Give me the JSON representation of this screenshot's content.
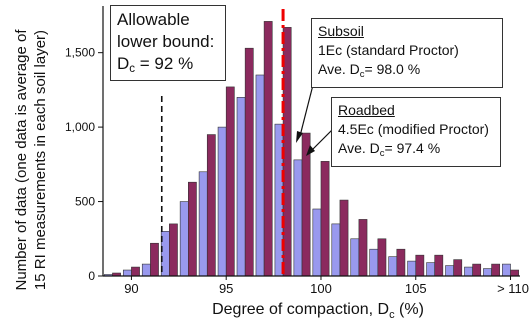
{
  "chart_data": {
    "type": "bar",
    "xlabel_main": "Degree of compaction, D",
    "xlabel_sub": "c",
    "xlabel_tail": " (%)",
    "ylabel_line1": "Number of data (one data is average of",
    "ylabel_line2": "15 RI measurements in each soil layer)",
    "ylim": [
      0,
      1800
    ],
    "y_ticks": [
      {
        "value": 0,
        "label": "0"
      },
      {
        "value": 500,
        "label": "500"
      },
      {
        "value": 1000,
        "label": "1,000"
      },
      {
        "value": 1500,
        "label": "1,500"
      }
    ],
    "x_ticks": [
      {
        "value": 90,
        "label": "90"
      },
      {
        "value": 95,
        "label": "95"
      },
      {
        "value": 100,
        "label": "100"
      },
      {
        "value": 105,
        "label": "105"
      },
      {
        "value": 110,
        "label": "> 110"
      }
    ],
    "bins": [
      89,
      90,
      91,
      92,
      93,
      94,
      95,
      96,
      97,
      98,
      99,
      100,
      101,
      102,
      103,
      104,
      105,
      106,
      107,
      108,
      109,
      110
    ],
    "series": [
      {
        "key": "roadbed",
        "color": "#9999ee",
        "values": [
          10,
          40,
          80,
          300,
          500,
          700,
          1000,
          1200,
          1350,
          1020,
          780,
          450,
          350,
          250,
          180,
          130,
          100,
          90,
          70,
          60,
          50,
          80
        ]
      },
      {
        "key": "subsoil",
        "color": "#8b2a5e",
        "values": [
          20,
          60,
          220,
          350,
          630,
          950,
          1270,
          1530,
          1710,
          1670,
          960,
          770,
          510,
          380,
          250,
          180,
          140,
          140,
          110,
          80,
          80,
          40
        ]
      }
    ],
    "reference_lines": [
      {
        "x": 91.6,
        "style": "dashed",
        "color": "#111111"
      },
      {
        "x": 98.0,
        "style": "dashdot",
        "color": "#ee0000"
      }
    ],
    "annotations": {
      "bound": {
        "line1": "Allowable",
        "line2": "lower bound:",
        "line3_main": "D",
        "line3_sub": "c",
        "line3_tail": " = 92 %"
      },
      "subsoil": {
        "title": "Subsoil",
        "line2": "1Ec (standard Proctor)",
        "line3_main": "Ave. D",
        "line3_sub": "c",
        "line3_tail": "= 98.0 %"
      },
      "roadbed": {
        "title": "Roadbed",
        "line2": "4.5Ec (modified Proctor)",
        "line3_main": "Ave. D",
        "line3_sub": "c",
        "line3_tail": "= 97.4 %"
      }
    },
    "grid": false,
    "legend": "none"
  }
}
